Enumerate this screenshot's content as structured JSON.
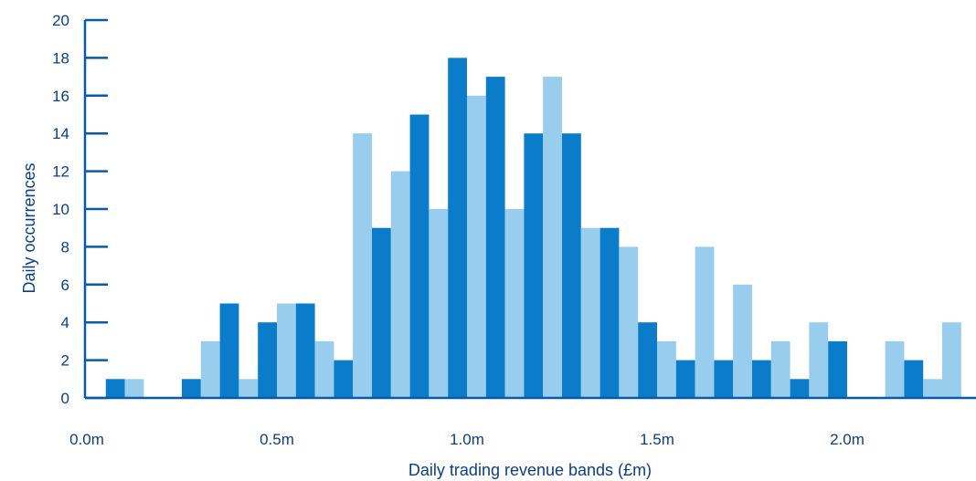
{
  "chart_data": {
    "type": "bar",
    "title": "",
    "xlabel": "Daily trading revenue bands (£m)",
    "ylabel": "Daily occurrences",
    "ylim": [
      0,
      20
    ],
    "yticks": [
      0,
      2,
      4,
      6,
      8,
      10,
      12,
      14,
      16,
      18,
      20
    ],
    "xlim": [
      0.0,
      2.3
    ],
    "xticks": [
      {
        "value": 0.0,
        "label": "0.0m"
      },
      {
        "value": 0.5,
        "label": "0.5m"
      },
      {
        "value": 1.0,
        "label": "1.0m"
      },
      {
        "value": 1.5,
        "label": "1.5m"
      },
      {
        "value": 2.0,
        "label": "2.0m"
      }
    ],
    "bin_width": 0.05,
    "bin_starts": [
      0.05,
      0.1,
      0.15,
      0.2,
      0.25,
      0.3,
      0.35,
      0.4,
      0.45,
      0.5,
      0.55,
      0.6,
      0.65,
      0.7,
      0.75,
      0.8,
      0.85,
      0.9,
      0.95,
      1.0,
      1.05,
      1.1,
      1.15,
      1.2,
      1.25,
      1.3,
      1.35,
      1.4,
      1.45,
      1.5,
      1.55,
      1.6,
      1.65,
      1.7,
      1.75,
      1.8,
      1.85,
      1.9,
      1.95,
      2.0,
      2.05,
      2.1,
      2.15,
      2.2,
      2.25
    ],
    "values": [
      1,
      1,
      0,
      0,
      1,
      3,
      5,
      1,
      4,
      5,
      5,
      3,
      2,
      14,
      9,
      12,
      15,
      10,
      18,
      16,
      17,
      10,
      14,
      17,
      14,
      9,
      9,
      8,
      4,
      3,
      2,
      8,
      2,
      6,
      2,
      3,
      1,
      4,
      3,
      0,
      0,
      3,
      2,
      1,
      4
    ],
    "bar_colors": [
      "#0a7cc9",
      "#98cdee",
      "#0a7cc9",
      "#98cdee",
      "#0a7cc9",
      "#98cdee",
      "#0a7cc9",
      "#98cdee",
      "#0a7cc9",
      "#98cdee",
      "#0a7cc9",
      "#98cdee",
      "#0a7cc9",
      "#98cdee",
      "#0a7cc9",
      "#98cdee",
      "#0a7cc9",
      "#98cdee",
      "#0a7cc9",
      "#98cdee",
      "#0a7cc9",
      "#98cdee",
      "#0a7cc9",
      "#98cdee",
      "#0a7cc9",
      "#98cdee",
      "#0a7cc9",
      "#98cdee",
      "#0a7cc9",
      "#98cdee",
      "#0a7cc9",
      "#98cdee",
      "#0a7cc9",
      "#98cdee",
      "#0a7cc9",
      "#98cdee",
      "#0a7cc9",
      "#98cdee",
      "#0a7cc9",
      "#98cdee",
      "#0a7cc9",
      "#98cdee",
      "#0a7cc9",
      "#98cdee",
      "#98cdee"
    ],
    "colors": {
      "dark": "#0a7cc9",
      "light": "#98cdee",
      "axis": "#0a5aa8",
      "text": "#0a3f86"
    }
  }
}
